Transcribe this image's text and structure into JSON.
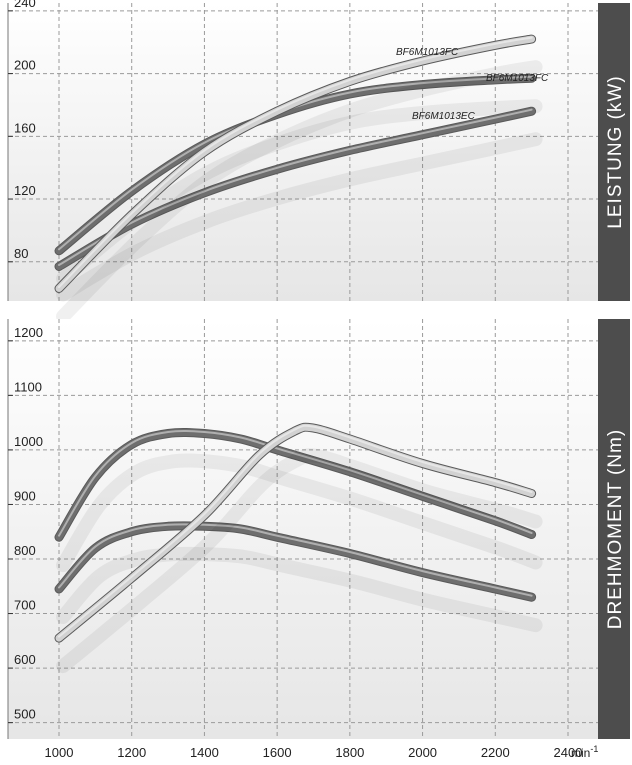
{
  "colors": {
    "panel_band": "#4d4d4d",
    "panel_bg_top": "#ffffff",
    "panel_bg_bottom": "#e6e6e6",
    "grid": "#9a9a9a",
    "curve_dark": "#6e6e6e",
    "curve_light": "#d2d2d2"
  },
  "chart_data": [
    {
      "type": "line",
      "ylabel": "LEISTUNG (kW)",
      "xlim": [
        1000,
        2400
      ],
      "ylim": [
        55,
        245
      ],
      "y_ticks": [
        "80",
        "120",
        "160",
        "200",
        "240"
      ],
      "grid": true,
      "series": [
        {
          "name": "BF6M1013FC",
          "color": "curve_light",
          "x": [
            1000,
            1200,
            1400,
            1600,
            1800,
            2000,
            2200,
            2300
          ],
          "y": [
            63,
            110,
            150,
            176,
            195,
            208,
            218,
            222
          ]
        },
        {
          "name": "BF6M1013FC",
          "color": "curve_dark",
          "x": [
            1000,
            1200,
            1400,
            1600,
            1800,
            2000,
            2200,
            2300
          ],
          "y": [
            87,
            125,
            155,
            174,
            187,
            193,
            196,
            197
          ]
        },
        {
          "name": "BF6M1013EC",
          "color": "curve_dark",
          "x": [
            1000,
            1200,
            1400,
            1600,
            1800,
            2000,
            2200,
            2300
          ],
          "y": [
            77,
            104,
            124,
            139,
            151,
            161,
            171,
            176
          ]
        }
      ]
    },
    {
      "type": "line",
      "ylabel": "DREHMOMENT (Nm)",
      "xlim": [
        1000,
        2400
      ],
      "ylim": [
        470,
        1240
      ],
      "y_ticks": [
        "500",
        "600",
        "700",
        "800",
        "900",
        "1000",
        "1100",
        "1200"
      ],
      "x_ticks": [
        "1000",
        "1200",
        "1400",
        "1600",
        "1800",
        "2000",
        "2200",
        "2400"
      ],
      "x_unit": "min",
      "x_unit_sup": "-1",
      "grid": true,
      "series": [
        {
          "name": "BF6M1013FC",
          "color": "curve_light",
          "x": [
            1000,
            1200,
            1400,
            1550,
            1650,
            1700,
            1800,
            2000,
            2200,
            2300
          ],
          "y": [
            655,
            765,
            880,
            990,
            1035,
            1040,
            1020,
            975,
            940,
            920
          ]
        },
        {
          "name": "BF6M1013FC",
          "color": "curve_dark",
          "x": [
            1000,
            1100,
            1200,
            1300,
            1400,
            1500,
            1600,
            1800,
            2000,
            2200,
            2300
          ],
          "y": [
            840,
            950,
            1010,
            1030,
            1030,
            1020,
            1000,
            960,
            915,
            870,
            845
          ]
        },
        {
          "name": "BF6M1013EC",
          "color": "curve_dark",
          "x": [
            1000,
            1100,
            1200,
            1300,
            1400,
            1500,
            1600,
            1800,
            2000,
            2200,
            2300
          ],
          "y": [
            745,
            820,
            850,
            860,
            860,
            855,
            840,
            810,
            775,
            745,
            730
          ]
        }
      ]
    }
  ]
}
